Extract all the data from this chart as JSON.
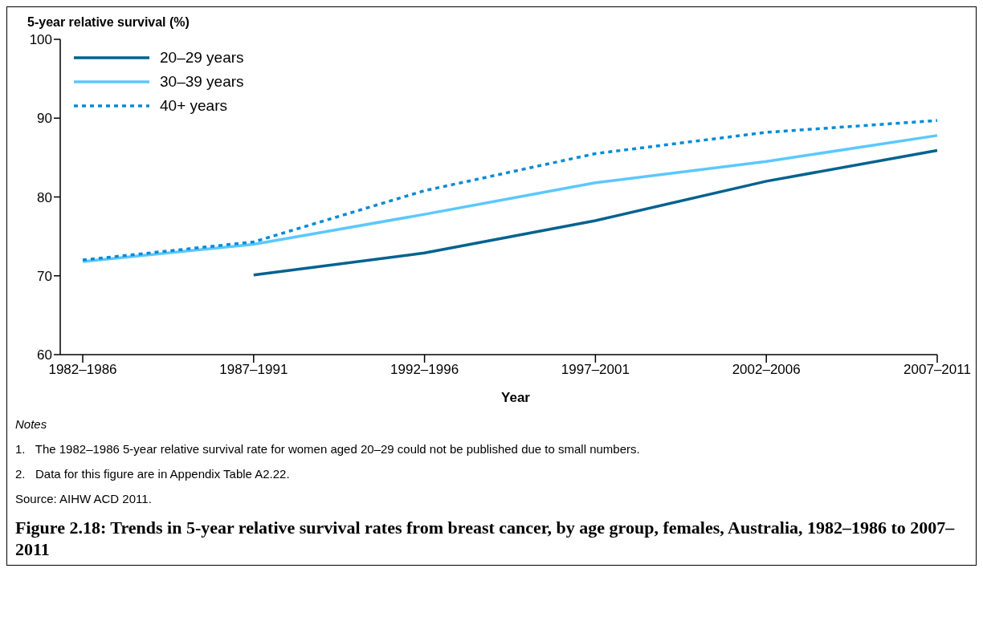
{
  "chart_data": {
    "type": "line",
    "title": "Figure 2.18: Trends in 5-year relative survival rates from breast cancer, by age group, females, Australia, 1982–1986 to 2007–2011",
    "xlabel": "Year",
    "ylabel": "5-year relative survival (%)",
    "categories": [
      "1982–1986",
      "1987–1991",
      "1992–1996",
      "1997–2001",
      "2002–2006",
      "2007–2011"
    ],
    "series": [
      {
        "name": "20–29 years",
        "color": "#00628f",
        "values": [
          null,
          70.1,
          72.9,
          77.0,
          82.0,
          85.9
        ]
      },
      {
        "name": "30–39 years",
        "color": "#5bc8ff",
        "values": [
          71.8,
          74.0,
          77.8,
          81.8,
          84.5,
          87.8
        ]
      },
      {
        "name": "40+ years",
        "color": "#0a8ad4",
        "line_style": "dotted",
        "values": [
          72.0,
          74.3,
          80.8,
          85.5,
          88.2,
          89.7
        ]
      }
    ],
    "ylim": [
      60,
      100
    ],
    "yticks": [
      60,
      70,
      80,
      90,
      100
    ],
    "grid": false,
    "legend": "top left",
    "marker": "none",
    "annotations": [
      "Notes",
      "1.   The 1982–1986 5-year relative survival rate for women aged 20–29 could not be published due to small numbers.",
      "2.   Data for this figure are in Appendix Table A2.22.",
      "Source: AIHW ACD 2011."
    ]
  }
}
